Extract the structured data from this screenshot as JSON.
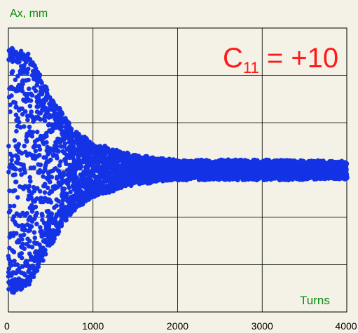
{
  "chart_data": {
    "type": "scatter",
    "ylabel": "Ax, mm",
    "xlabel": "Turns",
    "annotation": {
      "main": "C",
      "subscript": "11",
      "rest": " = +10"
    },
    "xlim": [
      0,
      4000
    ],
    "x_ticks": [
      "0",
      "1000",
      "2000",
      "3000",
      "4000"
    ],
    "grid": true,
    "point_color": "#1433e6",
    "annotation_color": "#ff1a1a",
    "label_color": "#0a8a12",
    "envelope": {
      "description": "decaying oscillation amplitude centered at y=0 (arbitrary units, full range -1..1)",
      "x": [
        0,
        250,
        500,
        750,
        1000,
        1500,
        2000,
        3000,
        4000
      ],
      "amplitude": [
        1.0,
        0.92,
        0.6,
        0.32,
        0.2,
        0.1,
        0.06,
        0.06,
        0.05
      ]
    },
    "num_points": 5200
  }
}
